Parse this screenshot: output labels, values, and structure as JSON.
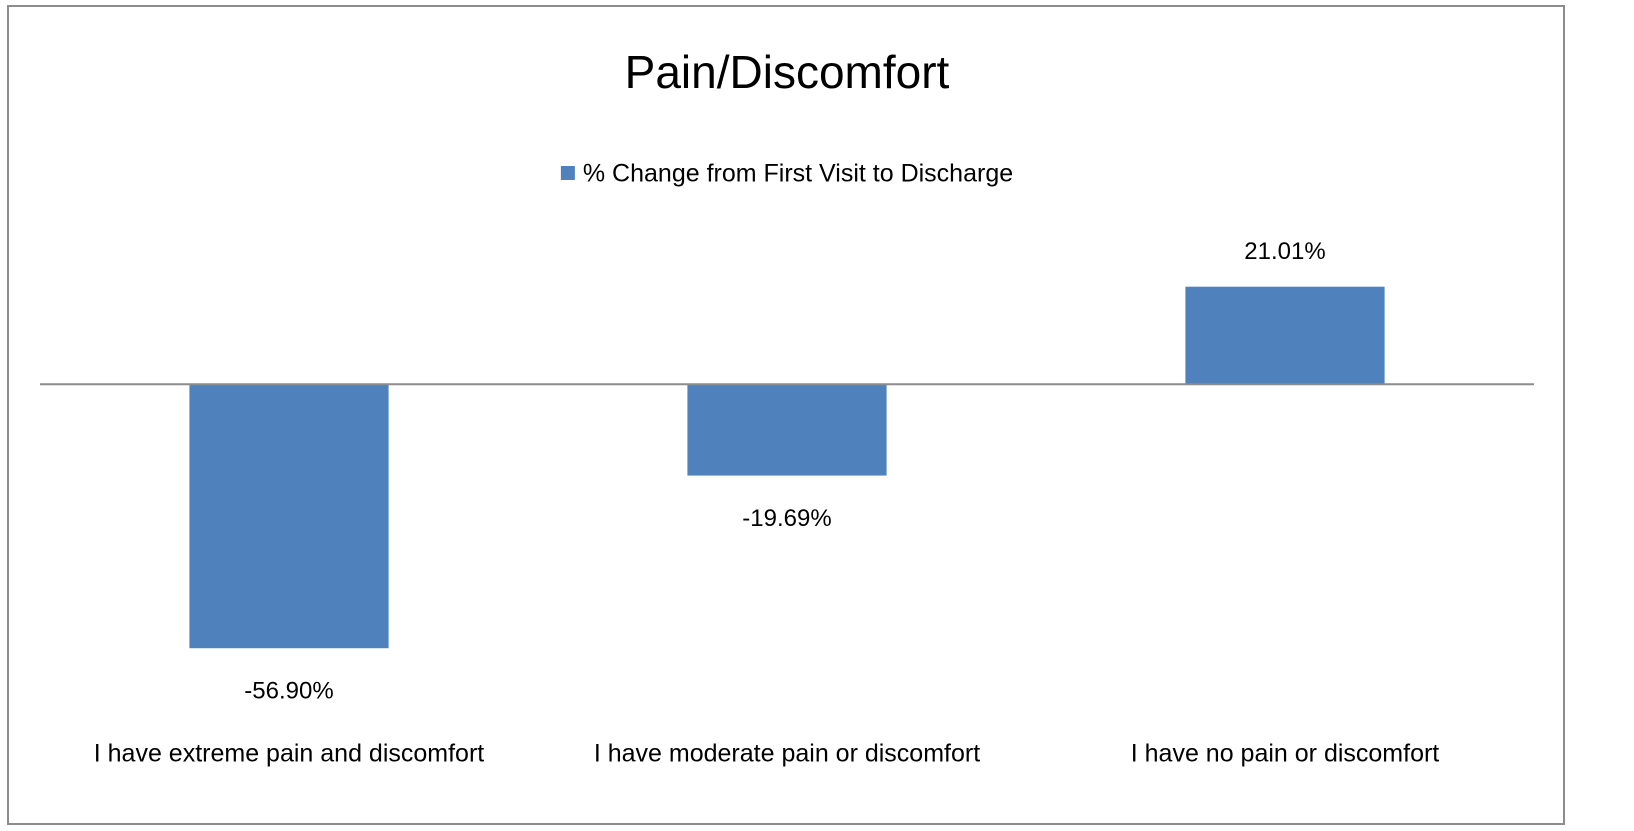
{
  "chart_data": {
    "type": "bar",
    "title": "Pain/Discomfort",
    "categories": [
      "I have extreme pain and discomfort",
      "I have moderate pain or discomfort",
      "I have no pain or discomfort"
    ],
    "series": [
      {
        "name": "% Change from First Visit to Discharge",
        "color": "#4f81bd",
        "values": [
          -56.9,
          -19.69,
          21.01
        ],
        "value_labels": [
          "-56.90%",
          "-19.69%",
          "21.01%"
        ]
      }
    ],
    "ylim": [
      -70,
      30
    ],
    "legend": "top"
  }
}
